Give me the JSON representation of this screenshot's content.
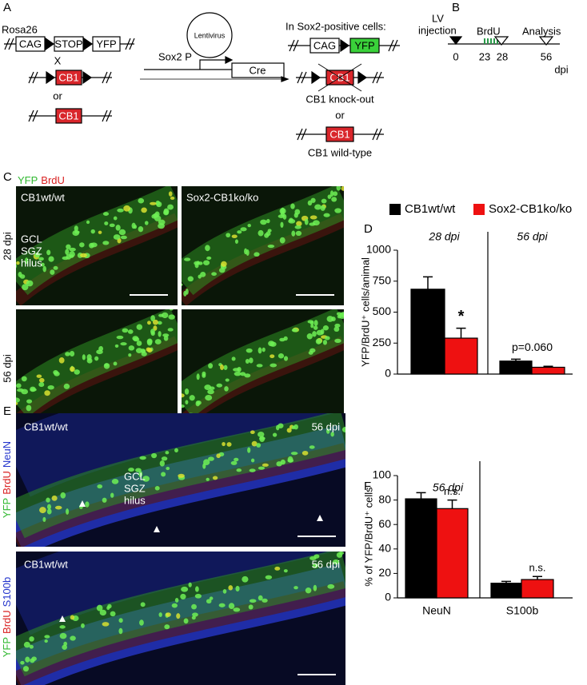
{
  "panel_labels": [
    "A",
    "B",
    "C",
    "D",
    "E",
    "F"
  ],
  "panel_a": {
    "rosa26": "Rosa26",
    "cag": "CAG",
    "stop": "STOP",
    "yfp": "YFP",
    "cross": "X",
    "cb1_floxed": "CB1",
    "or_1": "or",
    "cb1_wt": "CB1",
    "lentivirus": "Lentivirus",
    "promoter": "Sox2 P",
    "cre": "Cre",
    "result_title": "In Sox2-positive cells:",
    "result_cag": "CAG",
    "result_yfp": "YFP",
    "result_cb1_ko": "CB1",
    "ko_label": "CB1 knock-out",
    "or_2": "or",
    "result_cb1_wt": "CB1",
    "wt_label": "CB1 wild-type"
  },
  "panel_b": {
    "injection_1": "LV",
    "injection_2": "injection",
    "brdu": "BrdU",
    "analysis": "Analysis",
    "timepoints": [
      "0",
      "23",
      "28",
      "56"
    ],
    "unit": "dpi"
  },
  "panel_c": {
    "stain": [
      "YFP",
      "BrdU"
    ],
    "genotypes": [
      "CB1wt/wt",
      "Sox2-CB1ko/ko"
    ],
    "timepoints": [
      "28 dpi",
      "56 dpi"
    ],
    "layers": [
      "GCL",
      "SGZ",
      "hilus"
    ]
  },
  "panel_e": {
    "images": [
      {
        "genotype": "CB1wt/wt",
        "timepoint": "56 dpi",
        "stain": [
          "YFP",
          "BrdU",
          "NeuN"
        ]
      },
      {
        "genotype": "CB1wt/wt",
        "timepoint": "56 dpi",
        "stain": [
          "YFP",
          "BrdU",
          "S100b"
        ]
      }
    ],
    "layers": [
      "GCL",
      "SGZ",
      "hilus"
    ]
  },
  "chart_data": [
    {
      "type": "bar",
      "y_label": "YFP/BrdU⁺ cells/animal",
      "categories": [
        "28 dpi",
        "56 dpi"
      ],
      "series": [
        {
          "name": "CB1wt/wt",
          "color": "#000000",
          "values": [
            685,
            105
          ],
          "errors": [
            100,
            15
          ]
        },
        {
          "name": "Sox2-CB1ko/ko",
          "color": "#ee1111",
          "values": [
            290,
            55
          ],
          "errors": [
            80,
            8
          ]
        }
      ],
      "ylim": [
        0,
        1000
      ],
      "yticks": [
        0,
        250,
        500,
        750,
        1000
      ],
      "grid": false,
      "annotations": [
        {
          "text": "*"
        },
        {
          "text": "p=0.060"
        }
      ]
    },
    {
      "type": "bar",
      "subtitle": "56 dpi",
      "y_label": "% of YFP/BrdU⁺ cells",
      "categories": [
        "NeuN",
        "S100b"
      ],
      "series": [
        {
          "color": "#000000",
          "values": [
            81,
            12
          ],
          "errors": [
            5,
            1.5
          ]
        },
        {
          "color": "#ee1111",
          "values": [
            73,
            15
          ],
          "errors": [
            7,
            2.5
          ]
        }
      ],
      "ylim": [
        0,
        100
      ],
      "yticks": [
        0,
        20,
        40,
        60,
        80,
        100
      ],
      "grid": false,
      "annotations": [
        {
          "text": "n.s."
        },
        {
          "text": "n.s."
        }
      ]
    }
  ]
}
